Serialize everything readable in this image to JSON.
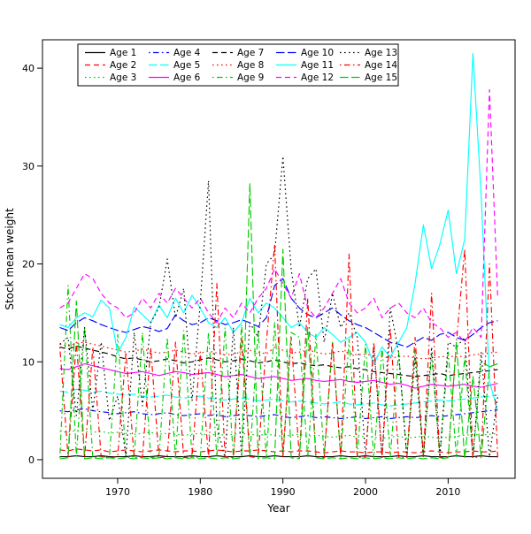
{
  "chart_data": {
    "type": "line",
    "title": "",
    "xlabel": "Year",
    "ylabel": "Stock mean weight",
    "grid": false,
    "legend_position": "top-left-inside",
    "legend_columns": 5,
    "xlim": [
      1960.9,
      2018.1
    ],
    "ylim": [
      -1.9,
      42.9
    ],
    "xticks": [
      1970,
      1980,
      1990,
      2000,
      2010
    ],
    "yticks": [
      0,
      10,
      20,
      30,
      40
    ],
    "x": [
      1963,
      1964,
      1965,
      1966,
      1967,
      1968,
      1969,
      1970,
      1971,
      1972,
      1973,
      1974,
      1975,
      1976,
      1977,
      1978,
      1979,
      1980,
      1981,
      1982,
      1983,
      1984,
      1985,
      1986,
      1987,
      1988,
      1989,
      1990,
      1991,
      1992,
      1993,
      1994,
      1995,
      1996,
      1997,
      1998,
      1999,
      2000,
      2001,
      2002,
      2003,
      2004,
      2005,
      2006,
      2007,
      2008,
      2009,
      2010,
      2011,
      2012,
      2013,
      2014,
      2015,
      2016
    ],
    "series": [
      {
        "name": "Age 1",
        "color": "#000000",
        "linetype": "solid",
        "values": [
          0.3,
          0.3,
          0.4,
          0.3,
          0.3,
          0.4,
          0.3,
          0.3,
          0.3,
          0.4,
          0.3,
          0.3,
          0.4,
          0.3,
          0.3,
          0.3,
          0.4,
          0.3,
          0.3,
          0.4,
          0.3,
          0.3,
          0.3,
          0.4,
          0.3,
          0.3,
          0.4,
          0.3,
          0.3,
          0.3,
          0.4,
          0.3,
          0.3,
          0.3,
          0.4,
          0.3,
          0.3,
          0.4,
          0.3,
          0.3,
          0.3,
          0.4,
          0.3,
          0.3,
          0.4,
          0.3,
          0.3,
          0.3,
          0.4,
          0.3,
          0.3,
          0.4,
          0.3,
          0.3
        ]
      },
      {
        "name": "Age 2",
        "color": "#FF0000",
        "linetype": "dashed",
        "values": [
          1.0,
          0.9,
          1.1,
          1.0,
          0.9,
          1.0,
          0.8,
          0.9,
          1.0,
          0.9,
          0.8,
          0.9,
          1.0,
          0.9,
          0.8,
          0.9,
          0.9,
          0.8,
          0.9,
          1.0,
          0.9,
          0.8,
          0.9,
          0.9,
          1.0,
          0.9,
          0.8,
          0.9,
          0.8,
          0.9,
          0.9,
          0.8,
          0.7,
          0.8,
          0.9,
          0.8,
          0.8,
          0.7,
          0.8,
          0.8,
          0.7,
          0.8,
          0.8,
          0.7,
          0.8,
          0.9,
          0.8,
          0.7,
          0.8,
          0.8,
          0.9,
          0.8,
          0.8,
          0.9
        ]
      },
      {
        "name": "Age 3",
        "color": "#00CD00",
        "linetype": "dotted",
        "values": [
          2.9,
          2.8,
          3.0,
          2.9,
          2.8,
          2.9,
          2.7,
          2.8,
          2.7,
          2.6,
          2.7,
          2.8,
          2.6,
          2.7,
          2.6,
          2.5,
          2.6,
          2.7,
          2.5,
          2.6,
          2.5,
          2.6,
          2.7,
          2.6,
          2.5,
          2.6,
          2.5,
          2.4,
          2.5,
          2.6,
          2.4,
          2.5,
          2.4,
          2.3,
          2.4,
          2.5,
          2.3,
          2.4,
          2.3,
          2.2,
          2.3,
          2.4,
          2.2,
          2.3,
          2.4,
          2.3,
          2.2,
          2.3,
          2.4,
          2.5,
          2.6,
          2.5,
          2.6,
          2.7
        ]
      },
      {
        "name": "Age 4",
        "color": "#0000FF",
        "linetype": "dotdash",
        "values": [
          5.0,
          4.9,
          5.1,
          5.2,
          5.0,
          4.9,
          4.8,
          4.7,
          4.8,
          4.9,
          4.7,
          4.6,
          4.7,
          4.8,
          4.6,
          4.5,
          4.6,
          4.7,
          4.5,
          4.6,
          4.4,
          4.5,
          4.6,
          4.5,
          4.4,
          4.5,
          4.6,
          4.4,
          4.3,
          4.4,
          4.5,
          4.3,
          4.4,
          4.3,
          4.2,
          4.3,
          4.4,
          4.2,
          4.3,
          4.4,
          4.2,
          4.3,
          4.4,
          4.3,
          4.4,
          4.5,
          4.4,
          4.5,
          4.6,
          4.7,
          4.8,
          4.9,
          5.0,
          5.1
        ]
      },
      {
        "name": "Age 5",
        "color": "#00FFFF",
        "linetype": "longdash",
        "values": [
          7.0,
          6.9,
          7.2,
          7.1,
          6.9,
          7.0,
          6.8,
          6.7,
          6.6,
          6.7,
          6.5,
          6.4,
          6.5,
          6.6,
          6.4,
          6.3,
          6.4,
          6.5,
          6.3,
          6.2,
          6.1,
          6.2,
          6.3,
          6.2,
          6.0,
          6.1,
          6.2,
          6.0,
          5.9,
          6.0,
          5.9,
          5.8,
          5.7,
          5.8,
          5.9,
          5.7,
          5.6,
          5.7,
          5.8,
          5.6,
          5.5,
          5.6,
          5.7,
          5.8,
          5.9,
          6.0,
          6.1,
          6.0,
          6.1,
          6.2,
          6.3,
          6.4,
          6.5,
          6.6
        ]
      },
      {
        "name": "Age 6",
        "color": "#FF00FF",
        "linetype": "solid",
        "values": [
          9.3,
          9.2,
          9.5,
          9.8,
          9.6,
          9.4,
          9.2,
          9.0,
          8.8,
          8.9,
          9.0,
          8.8,
          8.6,
          8.8,
          9.0,
          8.9,
          8.7,
          8.8,
          8.9,
          8.7,
          8.5,
          8.6,
          8.7,
          8.5,
          8.3,
          8.4,
          8.5,
          8.3,
          8.1,
          8.2,
          8.3,
          8.1,
          8.0,
          8.1,
          8.2,
          8.0,
          7.9,
          8.0,
          8.1,
          7.9,
          7.7,
          7.8,
          7.6,
          7.3,
          7.5,
          7.7,
          7.6,
          7.5,
          7.6,
          7.7,
          7.5,
          7.4,
          7.6,
          7.8
        ]
      },
      {
        "name": "Age 7",
        "color": "#000000",
        "linetype": "dashed",
        "values": [
          11.5,
          11.3,
          11.6,
          11.4,
          11.2,
          11.0,
          10.8,
          10.5,
          10.3,
          10.4,
          10.2,
          10.0,
          10.1,
          10.3,
          10.1,
          9.9,
          10.0,
          10.2,
          10.4,
          10.2,
          10.0,
          10.1,
          10.3,
          10.1,
          9.9,
          10.0,
          10.2,
          10.0,
          9.8,
          9.9,
          9.7,
          9.6,
          9.7,
          9.5,
          9.4,
          9.5,
          9.3,
          9.2,
          9.0,
          8.9,
          8.8,
          8.7,
          8.6,
          8.5,
          8.6,
          8.7,
          8.8,
          8.6,
          8.7,
          8.8,
          8.9,
          9.0,
          9.1,
          9.2
        ]
      },
      {
        "name": "Age 8",
        "color": "#FF0000",
        "linetype": "dotted",
        "values": [
          11.8,
          11.6,
          11.9,
          12.0,
          11.8,
          11.6,
          11.4,
          11.2,
          11.0,
          11.1,
          11.3,
          11.1,
          10.9,
          11.0,
          11.2,
          11.0,
          10.8,
          10.9,
          11.1,
          10.9,
          10.7,
          10.8,
          11.0,
          11.2,
          11.0,
          10.8,
          11.5,
          11.2,
          10.9,
          11.0,
          11.2,
          11.0,
          10.8,
          10.9,
          11.1,
          10.9,
          10.7,
          10.8,
          10.6,
          10.5,
          10.4,
          10.5,
          10.6,
          10.4,
          10.3,
          10.4,
          10.5,
          10.6,
          10.5,
          10.6,
          10.7,
          10.8,
          10.9,
          11.0
        ]
      },
      {
        "name": "Age 9",
        "color": "#00CD00",
        "linetype": "dotdash",
        "values": [
          0.2,
          17.8,
          0.3,
          13.5,
          0.2,
          0.3,
          0.2,
          12.8,
          0.2,
          0.3,
          13.0,
          0.2,
          0.3,
          12.5,
          0.2,
          13.2,
          0.3,
          0.2,
          13.0,
          0.3,
          13.5,
          0.2,
          13.8,
          0.3,
          13.2,
          0.2,
          14.0,
          0.3,
          13.0,
          12.5,
          0.2,
          12.8,
          0.3,
          12.0,
          0.2,
          12.3,
          0.3,
          11.8,
          0.2,
          11.5,
          0.3,
          11.0,
          0.2,
          11.2,
          0.3,
          10.8,
          0.2,
          11.0,
          0.3,
          10.5,
          0.2,
          10.0,
          9.5,
          9.8
        ]
      },
      {
        "name": "Age 10",
        "color": "#0000FF",
        "linetype": "longdash",
        "values": [
          13.5,
          13.2,
          14.0,
          14.5,
          14.2,
          13.8,
          13.5,
          13.2,
          13.0,
          13.3,
          13.6,
          13.4,
          13.1,
          13.4,
          14.8,
          14.2,
          13.8,
          14.0,
          14.5,
          14.2,
          13.8,
          14.0,
          14.3,
          14.0,
          13.6,
          14.5,
          17.8,
          18.5,
          16.5,
          15.5,
          14.8,
          14.5,
          15.0,
          15.5,
          14.8,
          14.2,
          13.8,
          13.5,
          13.0,
          12.5,
          12.0,
          11.8,
          11.5,
          12.0,
          12.5,
          12.2,
          12.8,
          13.0,
          12.5,
          12.2,
          12.8,
          13.5,
          14.0,
          14.2
        ]
      },
      {
        "name": "Age 11",
        "color": "#00FFFF",
        "linetype": "solid",
        "values": [
          13.8,
          13.5,
          14.5,
          15.0,
          14.6,
          16.3,
          15.5,
          10.9,
          12.5,
          15.6,
          14.8,
          14.0,
          15.8,
          14.5,
          16.5,
          15.0,
          16.8,
          15.5,
          14.0,
          13.5,
          14.5,
          13.0,
          14.0,
          16.5,
          15.0,
          16.0,
          15.5,
          14.5,
          13.5,
          14.0,
          13.0,
          12.5,
          13.5,
          12.8,
          12.0,
          12.5,
          13.0,
          12.0,
          9.8,
          11.5,
          10.5,
          12.0,
          13.5,
          18.0,
          24.0,
          19.5,
          22.0,
          25.5,
          19.0,
          22.5,
          41.5,
          27.0,
          8.0,
          5.0
        ]
      },
      {
        "name": "Age 12",
        "color": "#FF00FF",
        "linetype": "dashed",
        "values": [
          15.5,
          16.0,
          17.5,
          19.0,
          18.5,
          17.0,
          16.0,
          15.5,
          14.5,
          15.0,
          16.5,
          15.5,
          17.0,
          16.0,
          17.5,
          16.5,
          15.5,
          16.5,
          15.0,
          14.0,
          15.5,
          14.5,
          16.0,
          15.0,
          16.5,
          17.5,
          19.5,
          18.0,
          16.5,
          19.0,
          15.5,
          14.5,
          15.5,
          17.0,
          18.5,
          16.0,
          15.0,
          15.5,
          16.5,
          14.5,
          15.5,
          16.0,
          15.0,
          14.5,
          15.5,
          14.0,
          13.5,
          12.5,
          13.0,
          12.0,
          13.5,
          12.5,
          37.8,
          16.5
        ]
      },
      {
        "name": "Age 13",
        "color": "#000000",
        "linetype": "dotted",
        "values": [
          11.8,
          12.5,
          4.5,
          13.5,
          5.0,
          12.0,
          4.0,
          6.5,
          0.3,
          13.0,
          5.5,
          14.0,
          15.5,
          20.5,
          14.5,
          17.5,
          6.0,
          16.0,
          28.5,
          3.5,
          0.2,
          13.5,
          0.3,
          14.0,
          12.5,
          20.0,
          21.0,
          31.0,
          19.5,
          13.5,
          18.5,
          19.5,
          12.0,
          17.0,
          13.5,
          15.0,
          12.5,
          0.3,
          11.5,
          0.2,
          15.5,
          11.0,
          0.3,
          10.5,
          0.2,
          11.5,
          0.3,
          12.0,
          11.5,
          12.5,
          0.2,
          11.0,
          0.3,
          6.5
        ]
      },
      {
        "name": "Age 14",
        "color": "#FF0000",
        "linetype": "dotdash",
        "values": [
          11.5,
          0.3,
          12.0,
          0.2,
          11.5,
          0.3,
          0.2,
          0.3,
          11.0,
          0.2,
          0.3,
          11.5,
          0.2,
          0.3,
          12.0,
          0.2,
          0.3,
          11.0,
          0.2,
          18.0,
          0.3,
          0.2,
          12.5,
          0.3,
          0.2,
          12.0,
          22.0,
          0.3,
          12.5,
          0.2,
          16.5,
          0.3,
          0.2,
          12.0,
          0.3,
          21.0,
          0.2,
          0.3,
          12.0,
          0.2,
          13.5,
          0.3,
          0.2,
          12.5,
          0.3,
          17.0,
          0.2,
          0.3,
          12.0,
          21.5,
          0.2,
          0.3,
          20.0,
          0.2
        ]
      },
      {
        "name": "Age 15",
        "color": "#00CD00",
        "linetype": "longdash",
        "values": [
          0.1,
          0.2,
          16.2,
          0.1,
          0.2,
          0.1,
          0.2,
          0.1,
          0.2,
          0.1,
          0.2,
          0.1,
          0.2,
          0.1,
          0.2,
          0.1,
          0.2,
          0.1,
          0.2,
          0.1,
          0.2,
          0.1,
          0.2,
          28.2,
          0.1,
          0.2,
          0.1,
          21.5,
          0.2,
          0.1,
          13.5,
          0.2,
          0.1,
          0.2,
          0.1,
          0.2,
          0.1,
          0.2,
          0.1,
          0.2,
          0.1,
          0.2,
          0.1,
          0.2,
          0.1,
          0.2,
          0.1,
          0.2,
          12.0,
          0.1,
          8.5,
          0.2,
          9.5,
          9.8
        ]
      }
    ]
  }
}
